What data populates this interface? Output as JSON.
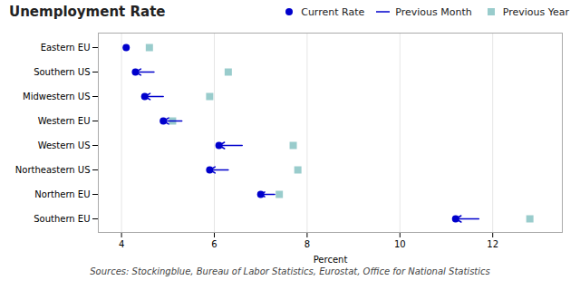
{
  "chart_data": {
    "type": "dot",
    "title": "Unemployment Rate",
    "xlabel": "Percent",
    "caption": "Sources: Stockingblue, Bureau of Labor Statistics, Eurostat, Office for National Statistics",
    "categories": [
      "Eastern EU",
      "Southern US",
      "Midwestern US",
      "Western EU",
      "Western US",
      "Northeastern US",
      "Northern EU",
      "Southern EU"
    ],
    "series": [
      {
        "name": "Current Rate",
        "type": "dot",
        "marker": "circle",
        "color": "#0000cc",
        "values": [
          4.1,
          4.3,
          4.5,
          4.9,
          6.1,
          5.9,
          7.0,
          11.2
        ]
      },
      {
        "name": "Previous Month",
        "type": "arrow",
        "line_style": "solid",
        "color": "#0000cc",
        "values": [
          4.1,
          4.7,
          4.9,
          5.3,
          6.6,
          6.3,
          7.3,
          11.7
        ]
      },
      {
        "name": "Previous Year",
        "type": "dot",
        "marker": "square",
        "color": "#99cccc",
        "values": [
          4.6,
          6.3,
          5.9,
          5.1,
          7.7,
          7.8,
          7.4,
          12.8
        ]
      }
    ],
    "xlim": [
      3.5,
      13.5
    ],
    "xticks": [
      4,
      6,
      8,
      10,
      12
    ],
    "grid": true,
    "legend": "upper right"
  }
}
